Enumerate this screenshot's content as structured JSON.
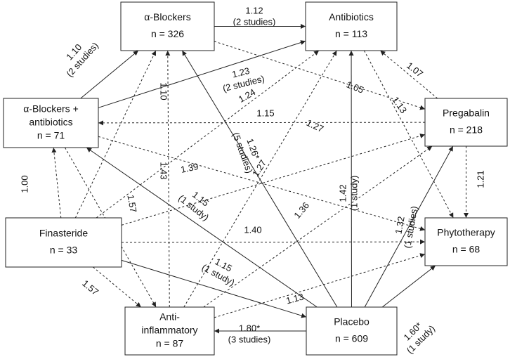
{
  "nodes": [
    {
      "lines": [
        "α-Blockers",
        "n = 326"
      ]
    },
    {
      "lines": [
        "Antibiotics",
        "n = 113"
      ]
    },
    {
      "lines": [
        "α-Blockers +",
        "antibiotics",
        "n = 71"
      ]
    },
    {
      "lines": [
        "Pregabalin",
        "n = 218"
      ]
    },
    {
      "lines": [
        "Finasteride",
        "n = 33"
      ]
    },
    {
      "lines": [
        "Phytotherapy",
        "n = 68"
      ]
    },
    {
      "lines": [
        "Anti-",
        "inflammatory",
        "n = 87"
      ]
    },
    {
      "lines": [
        "Placebo",
        "n = 609"
      ]
    }
  ],
  "edges": [
    {
      "from": 2,
      "to": 0,
      "style": "solid",
      "label": [
        "1.10",
        "(2 studies)"
      ]
    },
    {
      "from": 0,
      "to": 1,
      "style": "solid",
      "label": [
        "1.12",
        "(2 studies)"
      ]
    },
    {
      "from": 3,
      "to": 1,
      "style": "dashed",
      "label": [
        "1.07"
      ]
    },
    {
      "from": 2,
      "to": 1,
      "style": "solid",
      "label": [
        "1.23",
        "(2 studies)"
      ]
    },
    {
      "from": 0,
      "to": 3,
      "style": "dashed",
      "label": [
        "1.05"
      ]
    },
    {
      "from": 1,
      "to": 5,
      "style": "dashed",
      "label": [
        "1.13"
      ]
    },
    {
      "from": 3,
      "to": 2,
      "style": "dashed",
      "label": [
        "1.15"
      ]
    },
    {
      "from": 3,
      "to": 5,
      "style": "dashed",
      "label": [
        "1.21"
      ]
    },
    {
      "from": 4,
      "to": 2,
      "style": "dashed",
      "label": [
        "1.00"
      ]
    },
    {
      "from": 7,
      "to": 0,
      "style": "solid",
      "label": [
        "1.26*",
        "(5 studies)"
      ]
    },
    {
      "from": 7,
      "to": 1,
      "style": "solid",
      "label": [
        "1.42",
        "(1 study)"
      ]
    },
    {
      "from": 4,
      "to": 1,
      "style": "dashed",
      "label": [
        "1.24"
      ]
    },
    {
      "from": 6,
      "to": 1,
      "style": "dashed",
      "label": [
        "1.27"
      ]
    },
    {
      "from": 2,
      "to": 5,
      "style": "dashed",
      "label": [
        "1.27"
      ]
    },
    {
      "from": 4,
      "to": 0,
      "style": "dashed",
      "label": [
        "1.10"
      ]
    },
    {
      "from": 6,
      "to": 0,
      "style": "dashed",
      "label": [
        "1.43"
      ]
    },
    {
      "from": 2,
      "to": 6,
      "style": "dashed",
      "label": [
        "1.57"
      ]
    },
    {
      "from": 4,
      "to": 3,
      "style": "dashed",
      "label": [
        "1.39"
      ]
    },
    {
      "from": 7,
      "to": 2,
      "style": "solid",
      "label": [
        "1.15",
        "(1 study)"
      ]
    },
    {
      "from": 4,
      "to": 5,
      "style": "dashed",
      "label": [
        "1.40"
      ]
    },
    {
      "from": 4,
      "to": 7,
      "style": "solid",
      "label": [
        "1.15",
        "(1 study)"
      ]
    },
    {
      "from": 7,
      "to": 6,
      "style": "solid",
      "label": [
        "1.80*",
        "(3 studies)"
      ]
    },
    {
      "from": 7,
      "to": 5,
      "style": "solid",
      "label": [
        "1.60*",
        "(1 study)"
      ]
    },
    {
      "from": 7,
      "to": 3,
      "style": "solid",
      "label": [
        "1.32",
        "(1 studies)"
      ]
    },
    {
      "from": 6,
      "to": 5,
      "style": "dashed",
      "label": [
        "1.13"
      ]
    },
    {
      "from": 4,
      "to": 6,
      "style": "dashed",
      "label": [
        "1.57"
      ]
    },
    {
      "from": 6,
      "to": 3,
      "style": "dashed",
      "label": [
        "1.36"
      ]
    }
  ]
}
